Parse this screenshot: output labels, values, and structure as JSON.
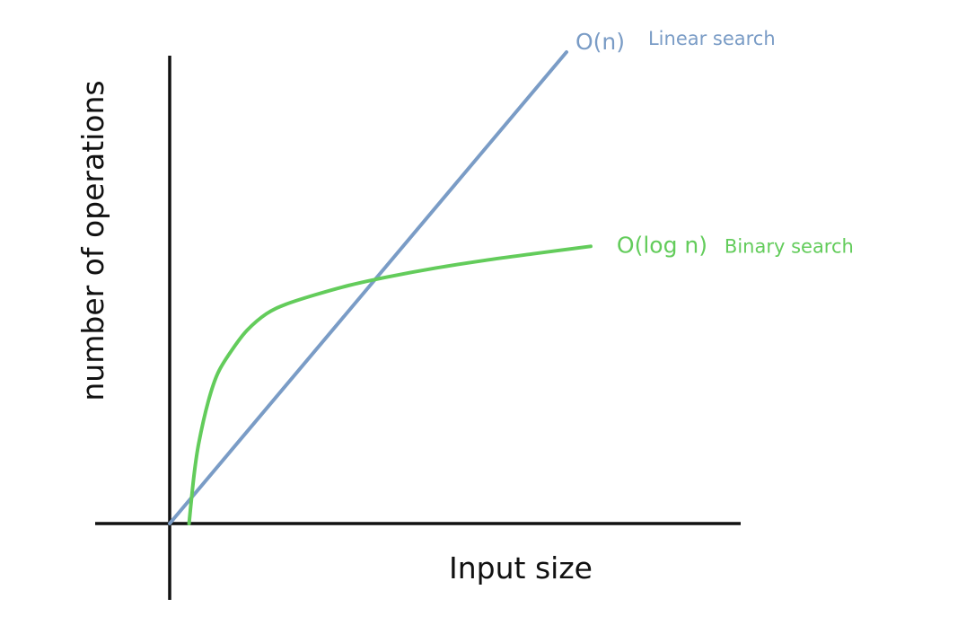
{
  "chart_data": {
    "type": "line",
    "xlabel": "Input size",
    "ylabel": "number of operations",
    "xlim": [
      0,
      100
    ],
    "ylim": [
      0,
      100
    ],
    "grid": false,
    "ticks": false,
    "series": [
      {
        "name": "Linear search",
        "complexity": "O(n)",
        "color": "#7A9CC6",
        "x": [
          0,
          10,
          20,
          30,
          40,
          50,
          60,
          70,
          80,
          82
        ],
        "y": [
          0,
          12,
          24,
          36,
          48,
          60,
          72,
          84,
          96,
          100
        ]
      },
      {
        "name": "Binary search",
        "complexity": "O(log n)",
        "color": "#63CC5B",
        "x": [
          4,
          5,
          6,
          8,
          10,
          13,
          16,
          20,
          24,
          30,
          37,
          45,
          55,
          65,
          75,
          87
        ],
        "y": [
          0,
          10,
          17,
          26,
          32,
          37,
          41,
          44.5,
          46.5,
          48.5,
          50.5,
          52.3,
          54.2,
          55.8,
          57.2,
          58.8
        ]
      }
    ]
  }
}
